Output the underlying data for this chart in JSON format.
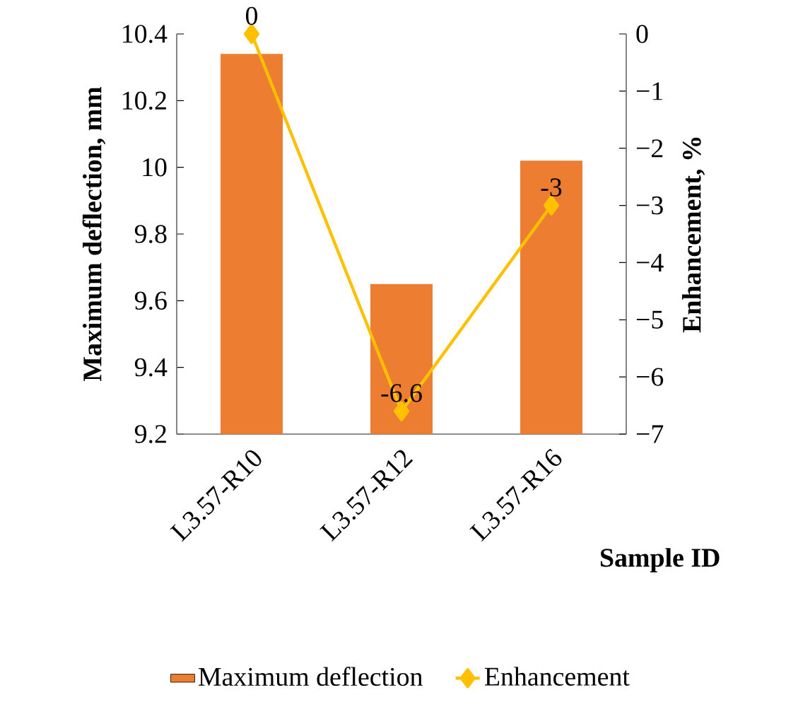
{
  "chart_data": {
    "type": "bar",
    "categories": [
      "L3.57-R10",
      "L3.57-R12",
      "L3.57-R16"
    ],
    "xlabel": "Sample ID",
    "ylabel": "Maximum deflection, mm",
    "y2label": "Enhancement, %",
    "series": [
      {
        "name": "Maximum deflection",
        "color": "#ed7d31",
        "values": [
          10.34,
          9.65,
          10.02
        ]
      },
      {
        "name": "Enhancement",
        "type": "line",
        "axis": "y2",
        "color": "#ffc000",
        "marker": "diamond",
        "data_labels": true,
        "values": [
          0,
          -6.6,
          -3
        ]
      }
    ],
    "ylim": [
      9.2,
      10.4
    ],
    "yticks": [
      9.2,
      9.4,
      9.6,
      9.8,
      10,
      10.2,
      10.4
    ],
    "y2lim": [
      -7,
      0
    ],
    "y2ticks": [
      {
        "value": -7,
        "label": "−7"
      },
      {
        "value": -6,
        "label": "−6"
      },
      {
        "value": -5,
        "label": "−5"
      },
      {
        "value": -4,
        "label": "−4"
      },
      {
        "value": -3,
        "label": "−3"
      },
      {
        "value": -2,
        "label": "−2"
      },
      {
        "value": -1,
        "label": "−1"
      },
      0
    ],
    "legend": "bottom",
    "grid": false
  }
}
